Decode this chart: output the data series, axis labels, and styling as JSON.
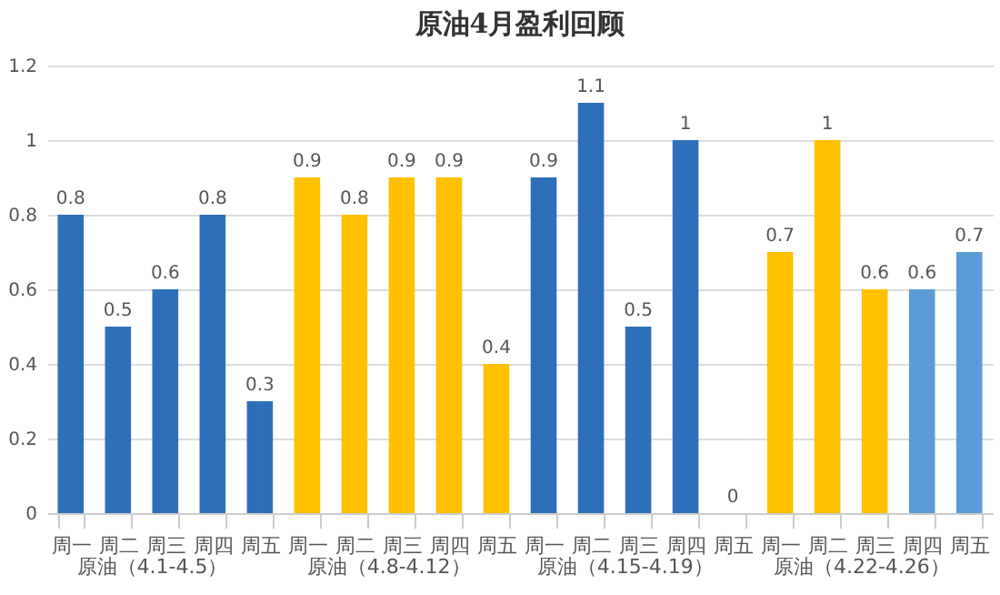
{
  "chart_data": {
    "type": "bar",
    "title": "原油4月盈利回顾",
    "categories": [
      "周一",
      "周二",
      "周三",
      "周四",
      "周五",
      "周一",
      "周二",
      "周三",
      "周四",
      "周五",
      "周一",
      "周二",
      "周三",
      "周四",
      "周五",
      "周一",
      "周二",
      "周三",
      "周四",
      "周五"
    ],
    "values": [
      0.8,
      0.5,
      0.6,
      0.8,
      0.3,
      0.9,
      0.8,
      0.9,
      0.9,
      0.4,
      0.9,
      1.1,
      0.5,
      1,
      0,
      0.7,
      1,
      0.6,
      0.6,
      0.7
    ],
    "colors": [
      "#2e6fba",
      "#2e6fba",
      "#2e6fba",
      "#2e6fba",
      "#2e6fba",
      "#ffc000",
      "#ffc000",
      "#ffc000",
      "#ffc000",
      "#ffc000",
      "#2e6fba",
      "#2e6fba",
      "#2e6fba",
      "#2e6fba",
      "#2e6fba",
      "#ffc000",
      "#ffc000",
      "#ffc000",
      "#5b9bd5",
      "#5b9bd5"
    ],
    "annotations": [
      "原油（4.1-4.5）",
      "原油（4.8-4.12）",
      "原油（4.15-4.19）",
      "原油（4.22-4.26）"
    ],
    "ylim": [
      0,
      1.2
    ],
    "yticks": [
      0,
      0.2,
      0.4,
      0.6,
      0.8,
      1,
      1.2
    ],
    "grid": "y",
    "data_labels": true
  }
}
